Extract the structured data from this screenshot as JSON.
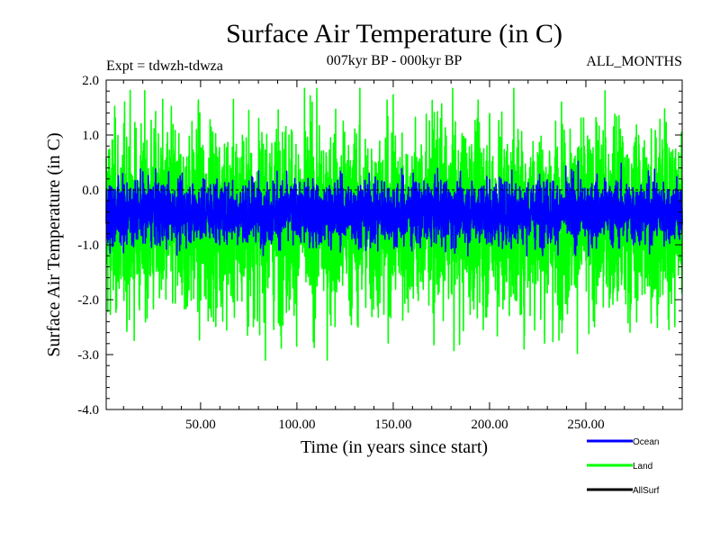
{
  "chart_data": {
    "type": "line",
    "title": "Surface Air Temperature (in C)",
    "subtitle": "007kyr BP - 000kyr BP",
    "experiment": "Expt = tdwzh-tdwza",
    "season": "ALL_MONTHS",
    "xlabel": "Time (in years since start)",
    "ylabel": "Surface Air Temperature (in C)",
    "xlim": [
      1,
      300
    ],
    "ylim": [
      -4.0,
      2.0
    ],
    "xticks": [
      50,
      100,
      150,
      200,
      250
    ],
    "xtick_labels": [
      "50.00",
      "100.00",
      "150.00",
      "200.00",
      "250.00"
    ],
    "yticks": [
      -4,
      -3,
      -2,
      -1,
      0,
      1,
      2
    ],
    "ytick_labels": [
      "-4.0",
      "-3.0",
      "-2.0",
      "-1.0",
      "0.0",
      "1.0",
      "2.0"
    ],
    "reference_line": 0.0,
    "grid": false,
    "legend_position": "bottom-right",
    "series": [
      {
        "name": "Land",
        "color": "#00ff00",
        "mean": -0.55,
        "typical_min": -2.9,
        "typical_max": 1.5,
        "observed_min": -3.1,
        "observed_max": 1.85
      },
      {
        "name": "Ocean",
        "color": "#0000ff",
        "mean": -0.4,
        "typical_min": -1.1,
        "typical_max": 0.4,
        "observed_min": -1.2,
        "observed_max": 0.6
      },
      {
        "name": "AllSurf",
        "color": "#000000",
        "values": []
      }
    ]
  }
}
